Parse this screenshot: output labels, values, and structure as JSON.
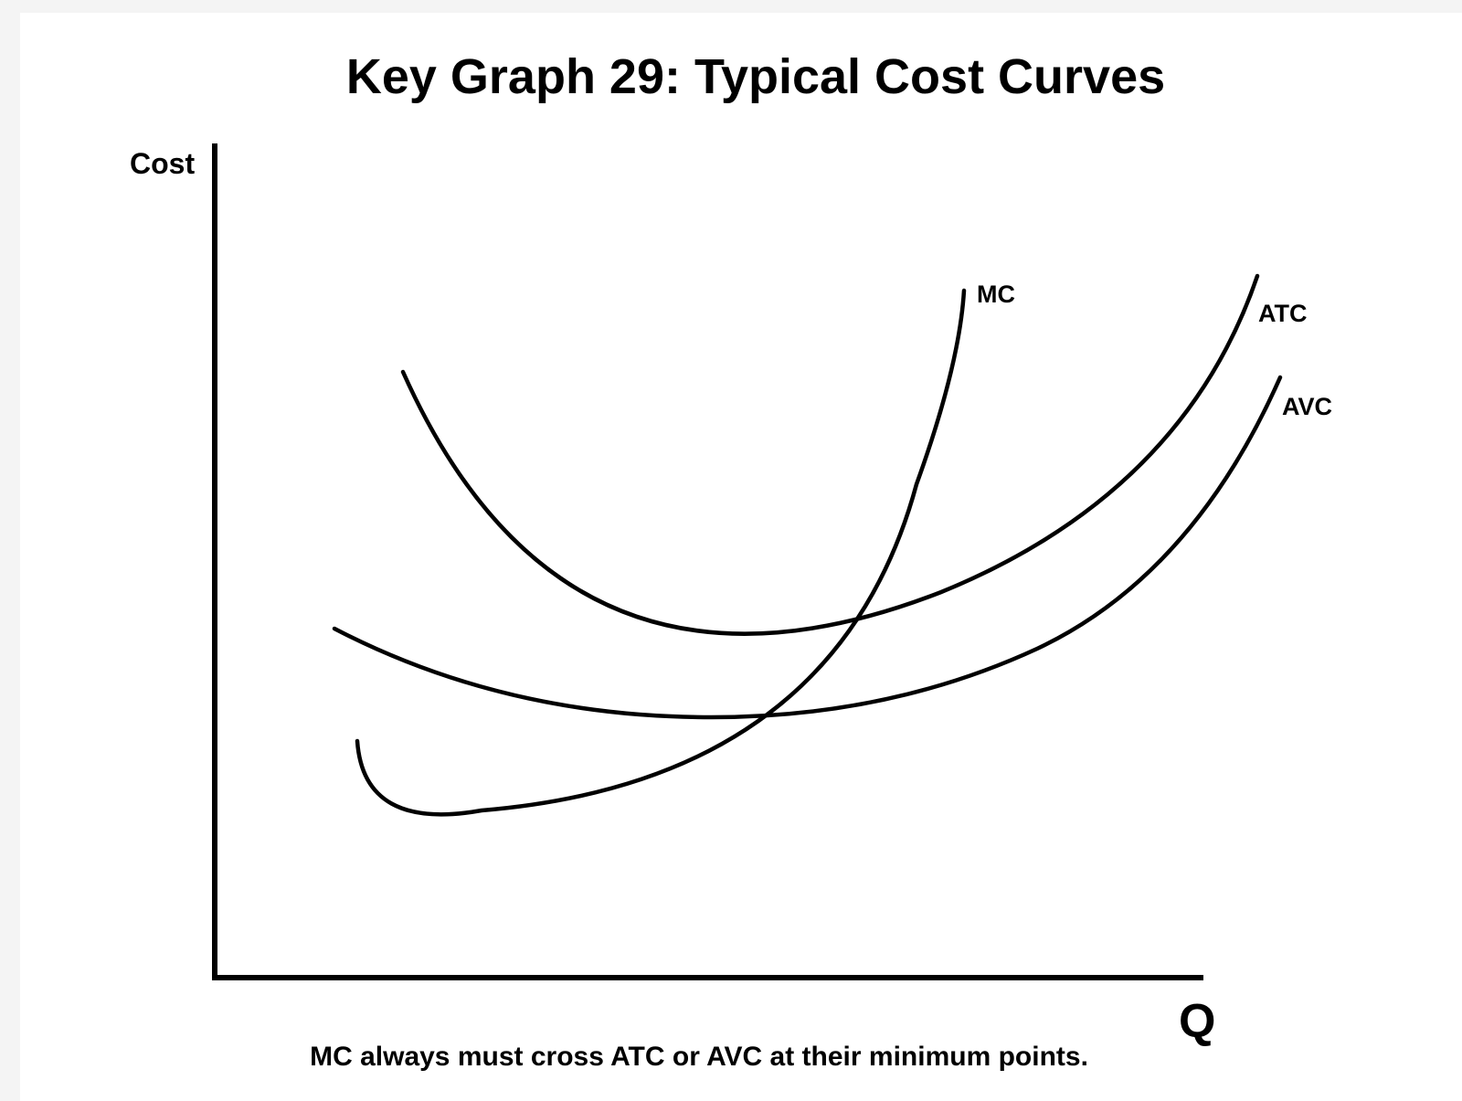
{
  "chart_data": {
    "type": "line",
    "title": "Key Graph 29: Typical Cost Curves",
    "ylabel": "Cost",
    "xlabel": "Q",
    "grid": false,
    "caption": "MC always must cross ATC or AVC at their minimum points.",
    "series": [
      {
        "name": "MC",
        "label": "MC"
      },
      {
        "name": "ATC",
        "label": "ATC"
      },
      {
        "name": "AVC",
        "label": "AVC"
      }
    ]
  }
}
